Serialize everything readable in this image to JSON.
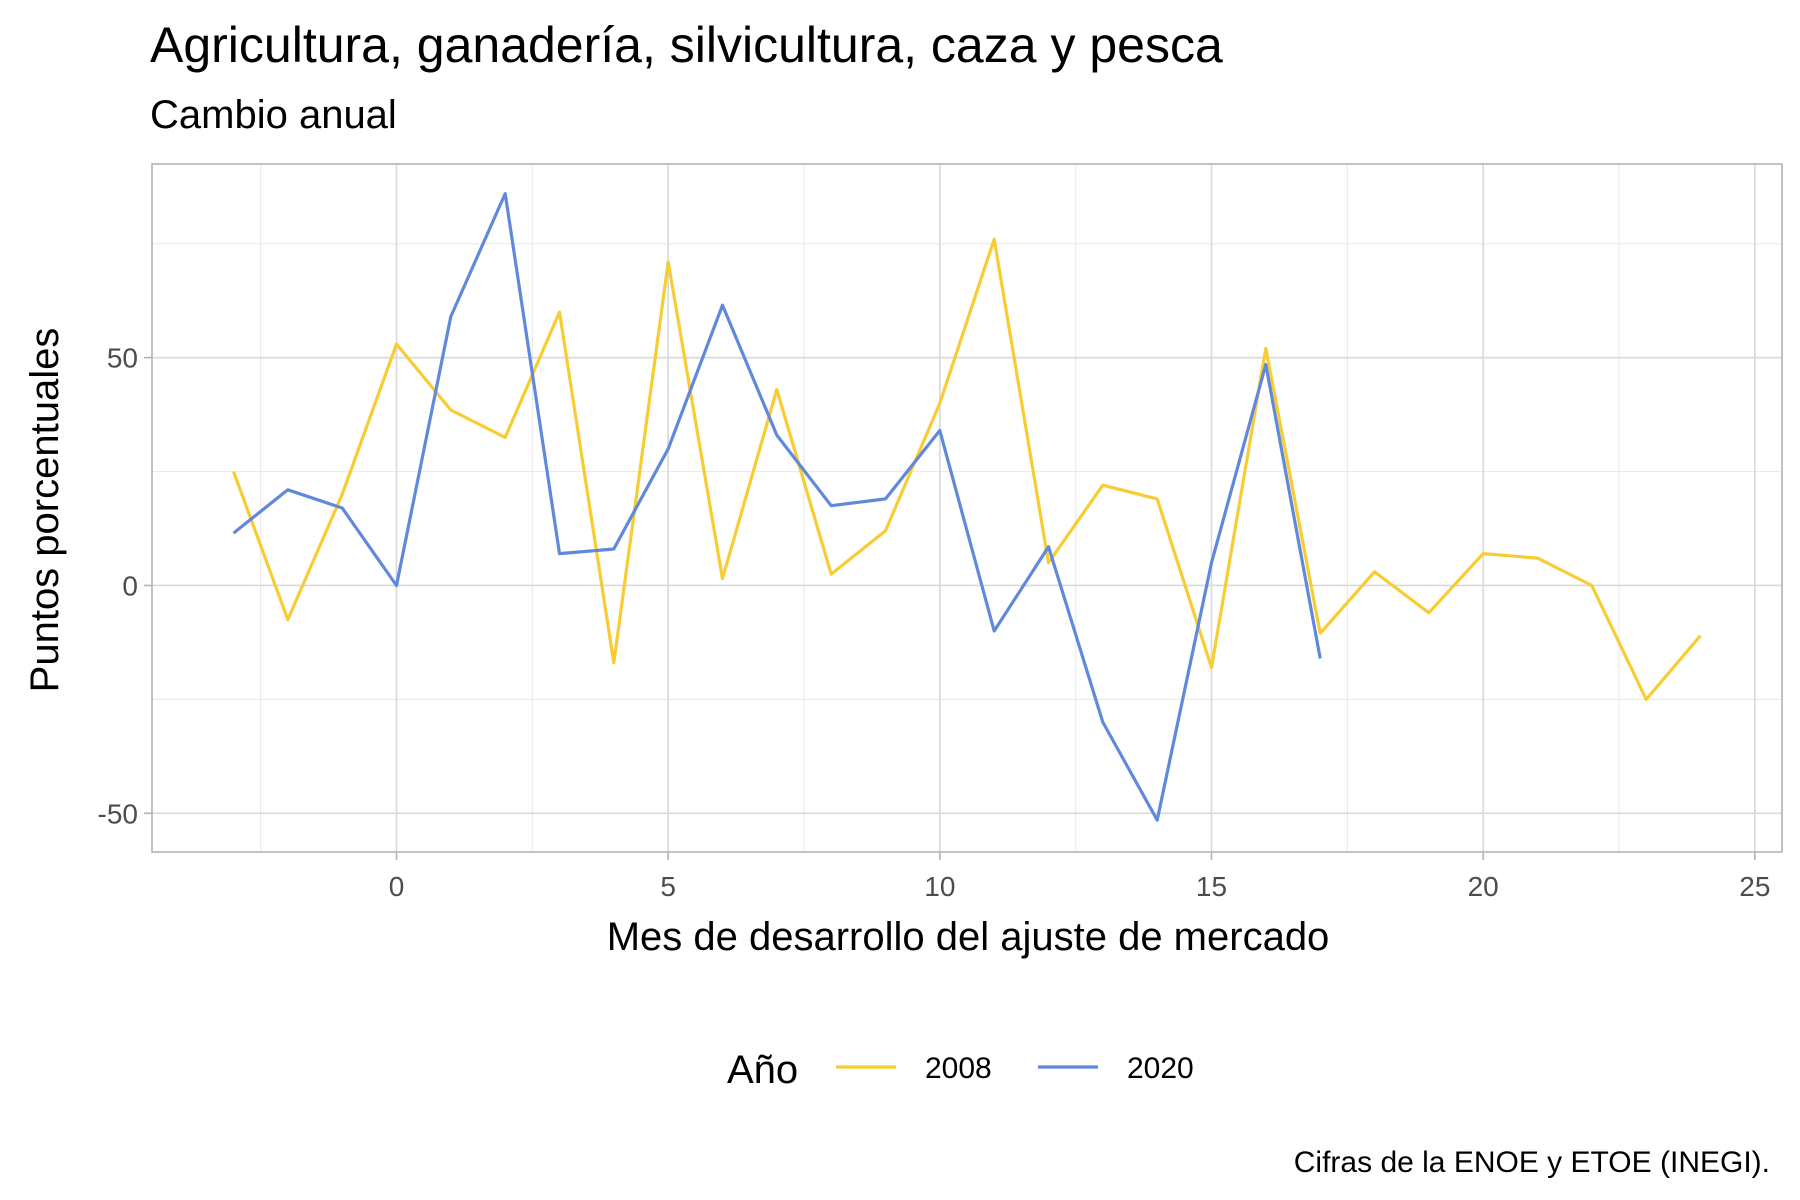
{
  "chart_data": {
    "type": "line",
    "title": "Agricultura, ganadería, silvicultura, caza y pesca",
    "subtitle": "Cambio anual",
    "xlabel": "Mes de desarrollo del ajuste de mercado",
    "ylabel": "Puntos porcentuales",
    "caption": "Cifras de la ENOE y ETOE (INEGI).",
    "xlim": [
      -4.5,
      25.5
    ],
    "ylim": [
      -58.5,
      92.5
    ],
    "x_ticks": [
      0,
      5,
      10,
      15,
      20,
      25
    ],
    "x_tick_labels": [
      "0",
      "5",
      "10",
      "15",
      "20",
      "25"
    ],
    "y_ticks": [
      50,
      0,
      -50
    ],
    "y_tick_labels": [
      "50",
      "0",
      "-50"
    ],
    "grid": true,
    "legend": {
      "title": "Año",
      "position": "bottom"
    },
    "series": [
      {
        "name": "2008",
        "color": "#F8CC33",
        "x": [
          -3,
          -2,
          -1,
          0,
          1,
          2,
          3,
          4,
          5,
          6,
          7,
          8,
          9,
          10,
          11,
          12,
          13,
          14,
          15,
          16,
          17,
          18,
          19,
          20,
          21,
          22,
          23,
          24
        ],
        "values": [
          25,
          -7.5,
          20,
          53,
          38.5,
          32.5,
          60,
          -17,
          71,
          1.5,
          43,
          2.5,
          12,
          40,
          76,
          5,
          22,
          19,
          -18,
          52,
          -10.5,
          3,
          -6,
          7,
          6,
          0,
          -25,
          -11
        ]
      },
      {
        "name": "2020",
        "color": "#6189DB",
        "x": [
          -3,
          -2,
          -1,
          0,
          1,
          2,
          3,
          4,
          5,
          6,
          7,
          8,
          9,
          10,
          11,
          12,
          13,
          14,
          15,
          16,
          17
        ],
        "values": [
          11.5,
          21,
          17,
          0,
          59,
          86,
          7,
          8,
          30,
          61.5,
          33,
          17.5,
          19,
          34,
          -10,
          8.5,
          -30,
          -51.5,
          5,
          48.5,
          -16
        ]
      }
    ]
  }
}
